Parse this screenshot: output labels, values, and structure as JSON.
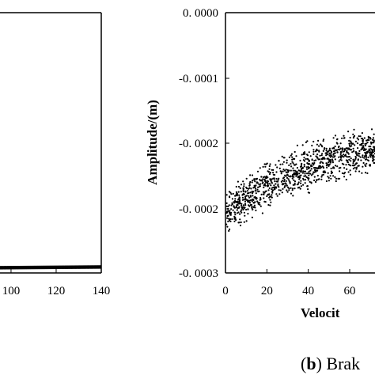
{
  "chart_data": [
    {
      "type": "scatter",
      "title": "",
      "xlabel": "",
      "ylabel": "",
      "x_ticks": [
        "100",
        "120",
        "140"
      ],
      "xlim": [
        93,
        140
      ],
      "ylim": [
        0,
        1
      ],
      "grid": false,
      "series": [
        {
          "x": [
            93,
            96,
            99,
            102,
            105,
            108,
            111,
            114,
            117,
            120,
            123,
            126,
            129,
            132,
            135,
            138,
            140
          ],
          "y": [
            0.02,
            0.02,
            0.02,
            0.02,
            0.02,
            0.021,
            0.021,
            0.021,
            0.022,
            0.022,
            0.022,
            0.022,
            0.023,
            0.023,
            0.023,
            0.023,
            0.023
          ]
        }
      ]
    },
    {
      "type": "scatter",
      "title": "",
      "xlabel": "Velocit",
      "ylabel": "Amplitude/(m)",
      "x_ticks": [
        "0",
        "20",
        "40",
        "60"
      ],
      "y_ticks": [
        "0. 0000",
        "-0. 0001",
        "-0. 0002",
        "-0. 0002",
        "-0. 0003"
      ],
      "xlim": [
        0,
        75
      ],
      "ylim": [
        -0.0003,
        0.0
      ],
      "grid": false,
      "scatter_description": "Dense point cloud rising from about -0.00025 m near 0 to about -0.00015 m near 70",
      "trend": {
        "x": [
          0,
          10,
          20,
          30,
          40,
          50,
          60,
          70
        ],
        "y": [
          -0.00023,
          -0.000215,
          -0.0002,
          -0.000188,
          -0.000178,
          -0.00017,
          -0.000163,
          -0.000158
        ]
      },
      "spread": 3.5e-05,
      "n_points": 1100
    }
  ],
  "caption": {
    "letter": "b",
    "text": " Brak"
  }
}
